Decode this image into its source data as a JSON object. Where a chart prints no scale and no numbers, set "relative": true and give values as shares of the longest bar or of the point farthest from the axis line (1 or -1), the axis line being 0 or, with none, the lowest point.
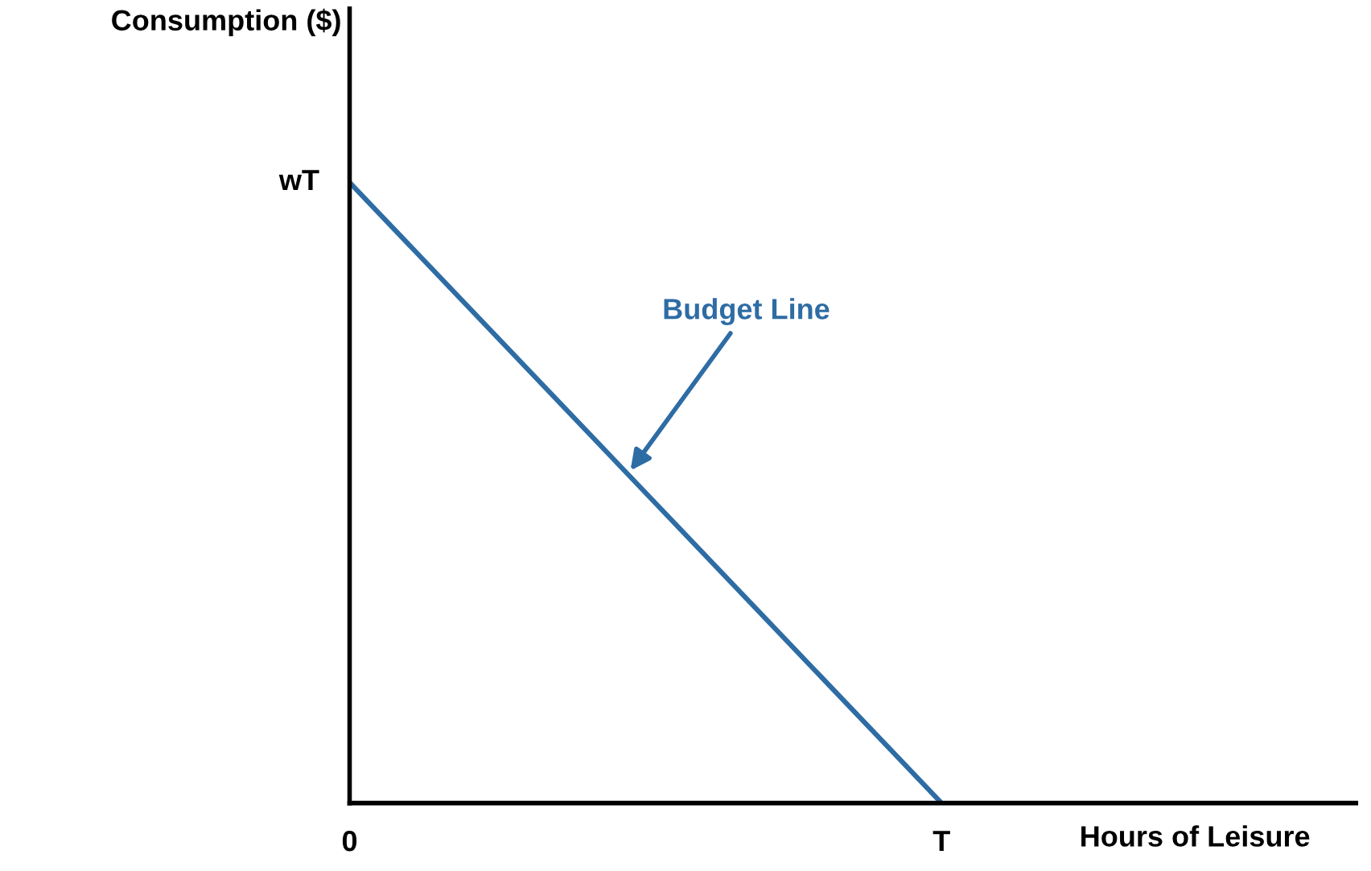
{
  "chart_data": {
    "type": "line",
    "xlabel": "Hours of Leisure",
    "categories": [
      "0",
      "T"
    ],
    "series": [
      {
        "color": "#2e6ca4",
        "values": [
          1,
          0
        ]
      }
    ],
    "relative": true,
    "annotations": [
      "wT",
      "Budget Line",
      "Consumption ($)"
    ],
    "grid": false,
    "legend": false,
    "marker": "none",
    "line_style": "solid"
  }
}
